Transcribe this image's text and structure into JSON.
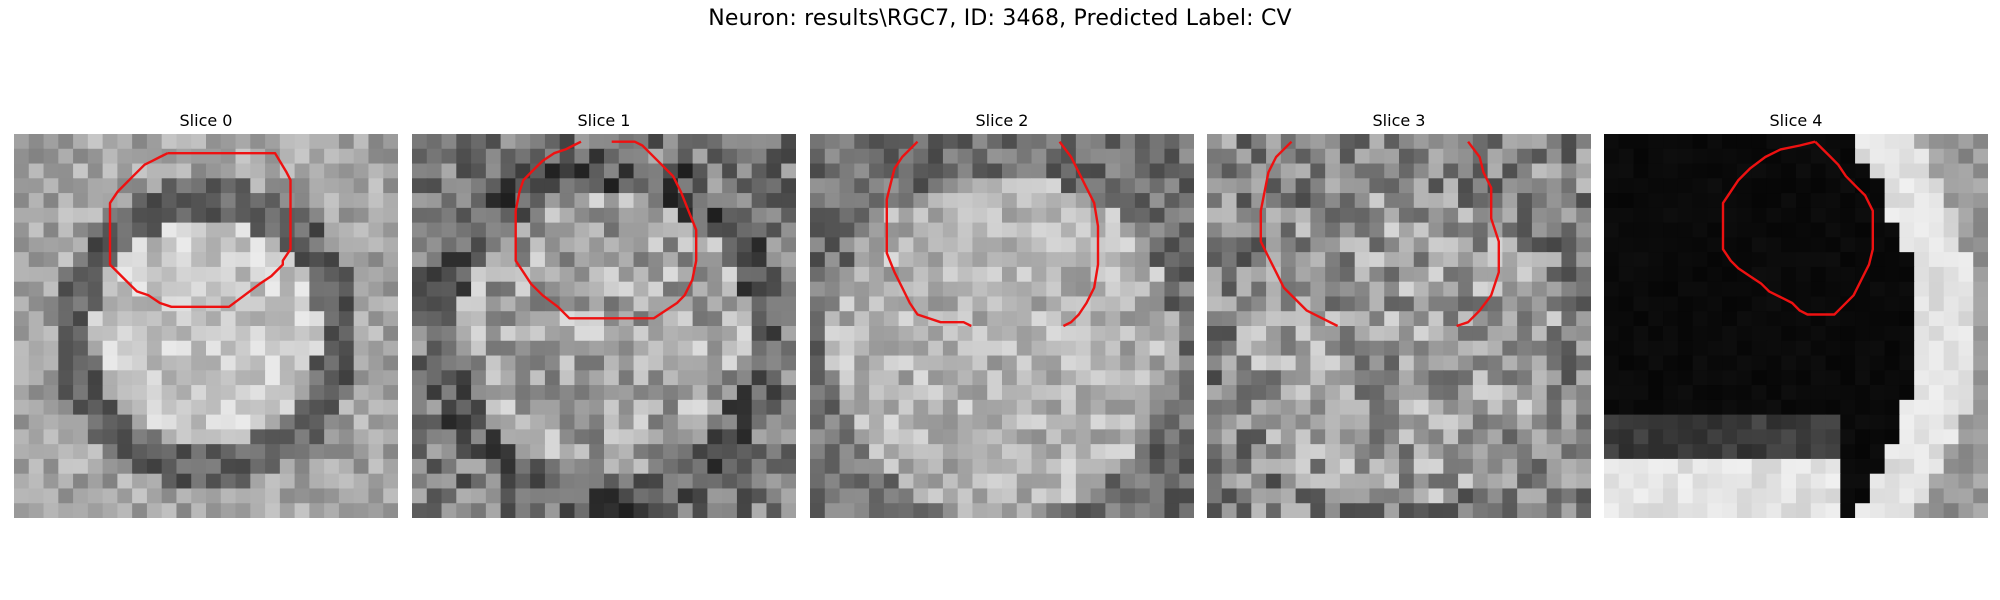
{
  "figure": {
    "title": "Neuron: results\\RGC7, ID: 3468, Predicted Label: CV"
  },
  "panels": [
    {
      "title": "Slice 0",
      "contour_color": "#ee1111"
    },
    {
      "title": "Slice 1",
      "contour_color": "#ee1111"
    },
    {
      "title": "Slice 2",
      "contour_color": "#ee1111"
    },
    {
      "title": "Slice 3",
      "contour_color": "#ee1111"
    },
    {
      "title": "Slice 4",
      "contour_color": "#ee1111"
    }
  ]
}
